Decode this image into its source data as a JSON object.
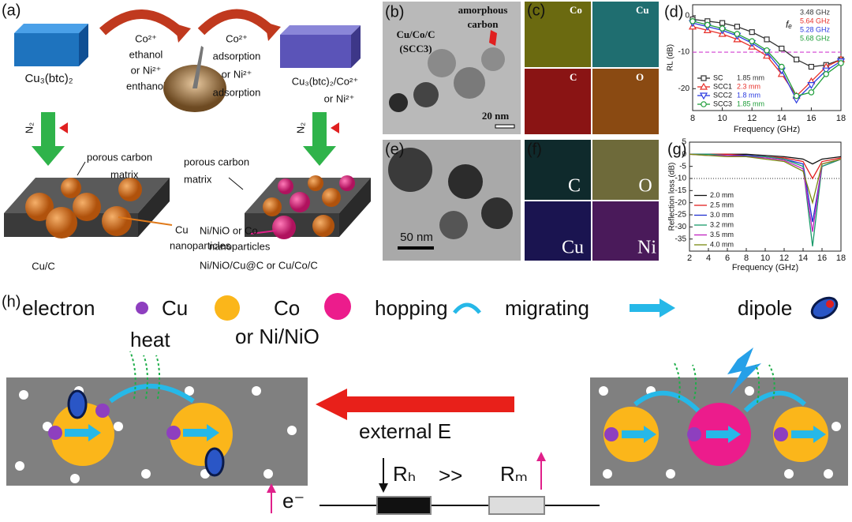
{
  "figure": {
    "panel_a": {
      "label": "(a)",
      "precursor": "Cu₃(btc)₂",
      "step1": [
        "Co²⁺",
        "ethanol",
        "or Ni²⁺",
        "enthanol"
      ],
      "step2": [
        "Co²⁺",
        "adsorption",
        "or Ni²⁺",
        "adsorption"
      ],
      "intermediate": [
        "Cu₃(btc)₂/Co²⁺",
        "or Ni²⁺"
      ],
      "gas_left": "N₂",
      "gas_right": "N₂",
      "matrix_left": [
        "porous carbon",
        "matrix"
      ],
      "particles_left": [
        "Cu",
        "nanoparticles"
      ],
      "product_left": "Cu/C",
      "matrix_right": [
        "porous carbon",
        "matrix"
      ],
      "particles_right": [
        "Ni/NiO or Co",
        "nanoparticles"
      ],
      "product_right": "Ni/NiO/Cu@C or  Cu/Co/C"
    },
    "panel_b": {
      "label": "(b)",
      "sample": [
        "Cu/Co/C",
        "(SCC3)"
      ],
      "annotation": [
        "amorphous",
        "carbon"
      ],
      "scale": "20 nm"
    },
    "panel_c": {
      "label": "(c)",
      "maps": [
        "Co",
        "Cu",
        "C",
        "O"
      ]
    },
    "panel_e": {
      "label": "(e)",
      "scale": "50 nm"
    },
    "panel_f": {
      "label": "(f)",
      "maps": [
        "C",
        "O",
        "Cu",
        "Ni"
      ]
    },
    "panel_h": {
      "label": "(h)",
      "legend": [
        "electron",
        "Cu",
        "Co",
        "or Ni/NiO",
        "hopping",
        "migrating",
        "dipole"
      ],
      "heat": "heat",
      "field": "external E",
      "r_h": "Rₕ",
      "relation": ">>",
      "r_m": "Rₘ",
      "electron": "e⁻"
    }
  },
  "chart_data": [
    {
      "type": "line",
      "label": "(d)",
      "xlabel": "Frequency (GHz)",
      "ylabel": "RL (dB)",
      "xlim": [
        8,
        18
      ],
      "ylim": [
        -26,
        3
      ],
      "xticks": [
        8,
        10,
        12,
        14,
        16,
        18
      ],
      "yticks": [
        0,
        -10,
        -20
      ],
      "legend": "lower left",
      "annotation": "fₑ",
      "hline": {
        "value": -10,
        "color": "#d23fd2",
        "style": "dashed"
      },
      "x": [
        8,
        9,
        10,
        11,
        12,
        13,
        14,
        15,
        16,
        17,
        18
      ],
      "series": [
        {
          "name": "SC",
          "thickness": "1.85 mm",
          "fe": "3.48 GHz",
          "color": "#333333",
          "marker": "square",
          "values": [
            -1,
            -1.5,
            -2,
            -3,
            -4.5,
            -6.5,
            -9,
            -12,
            -14,
            -13.5,
            -12
          ]
        },
        {
          "name": "SCC1",
          "thickness": "2.3 mm",
          "fe": "5.64 GHz",
          "color": "#e8302a",
          "marker": "triangle",
          "values": [
            -3,
            -4,
            -5,
            -6.5,
            -8.5,
            -11,
            -16,
            -22,
            -18,
            -14,
            -12
          ]
        },
        {
          "name": "SCC2",
          "thickness": "1.8 mm",
          "fe": "5.28 GHz",
          "color": "#2b3be0",
          "marker": "down",
          "values": [
            -2,
            -3,
            -4,
            -5.5,
            -7.5,
            -10,
            -15,
            -23,
            -19,
            -15,
            -12.5
          ]
        },
        {
          "name": "SCC3",
          "thickness": "1.85 mm",
          "fe": "5.68 GHz",
          "color": "#1f9e3a",
          "marker": "circle",
          "values": [
            -1.5,
            -2.5,
            -3.5,
            -5,
            -7,
            -9.5,
            -14,
            -22,
            -21,
            -16,
            -13
          ]
        }
      ]
    },
    {
      "type": "line",
      "label": "(g)",
      "xlabel": "Frequency (GHz)",
      "ylabel": "Reflection loss (dB)",
      "xlim": [
        2,
        18
      ],
      "ylim": [
        -40,
        5
      ],
      "xticks": [
        2,
        4,
        6,
        8,
        10,
        12,
        14,
        16,
        18
      ],
      "yticks": [
        5,
        0,
        -5,
        -10,
        -15,
        -20,
        -25,
        -30,
        -35
      ],
      "legend": "lower left",
      "hline": {
        "value": -10,
        "color": "#555555",
        "style": "dotted"
      },
      "x": [
        2,
        4,
        6,
        8,
        10,
        12,
        14,
        15,
        16,
        18
      ],
      "series": [
        {
          "name": "2.0 mm",
          "color": "#111111",
          "values": [
            0,
            0,
            0,
            0,
            -0.5,
            -1,
            -2,
            -4,
            -2,
            -1
          ]
        },
        {
          "name": "2.5 mm",
          "color": "#e02020",
          "values": [
            0,
            0,
            0,
            -0.5,
            -1,
            -1.5,
            -3,
            -10,
            -3,
            -1.5
          ]
        },
        {
          "name": "3.0 mm",
          "color": "#2030d0",
          "values": [
            0,
            0,
            -0.5,
            -0.5,
            -1,
            -2,
            -4,
            -28,
            -5,
            -2
          ]
        },
        {
          "name": "3.2 mm",
          "color": "#1a9a6a",
          "values": [
            0,
            0,
            -0.5,
            -1,
            -1,
            -2,
            -5,
            -38,
            -5,
            -2
          ]
        },
        {
          "name": "3.5 mm",
          "color": "#c020c0",
          "values": [
            0,
            -0.5,
            -0.5,
            -1,
            -1.5,
            -2.5,
            -6,
            -32,
            -4,
            -2
          ]
        },
        {
          "name": "4.0 mm",
          "color": "#7a8a10",
          "values": [
            0,
            -0.5,
            -1,
            -1,
            -2,
            -3,
            -7,
            -20,
            -4,
            -2
          ]
        }
      ]
    }
  ]
}
